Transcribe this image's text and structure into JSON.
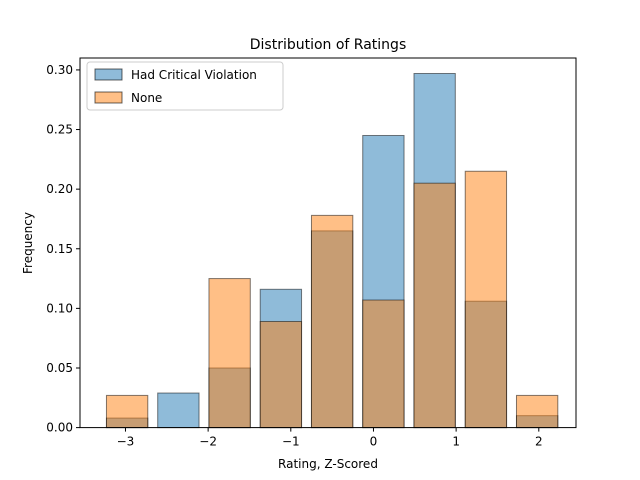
{
  "chart_data": {
    "type": "bar",
    "title": "Distribution of Ratings",
    "xlabel": "Rating, Z-Scored",
    "ylabel": "Frequency",
    "xlim": [
      -3.55,
      2.45
    ],
    "ylim": [
      0,
      0.31
    ],
    "xticks": [
      -3,
      -2,
      -1,
      0,
      1,
      2
    ],
    "xtick_labels": [
      "−3",
      "−2",
      "−1",
      "0",
      "1",
      "2"
    ],
    "yticks": [
      0.0,
      0.05,
      0.1,
      0.15,
      0.2,
      0.25,
      0.3
    ],
    "ytick_labels": [
      "0.00",
      "0.05",
      "0.10",
      "0.15",
      "0.20",
      "0.25",
      "0.30"
    ],
    "bin_centers": [
      -2.98,
      -2.36,
      -1.74,
      -1.12,
      -0.5,
      0.12,
      0.74,
      1.36,
      1.98
    ],
    "bar_width": 0.5,
    "grid": false,
    "legend_position": "top-left",
    "series": [
      {
        "name": "Had Critical Violation",
        "color": "#1f77b4",
        "values": [
          0.008,
          0.029,
          0.05,
          0.116,
          0.165,
          0.245,
          0.297,
          0.106,
          0.01
        ]
      },
      {
        "name": "None",
        "color": "#ff7f0e",
        "values": [
          0.027,
          0.0,
          0.125,
          0.089,
          0.178,
          0.107,
          0.205,
          0.215,
          0.027
        ]
      }
    ]
  }
}
